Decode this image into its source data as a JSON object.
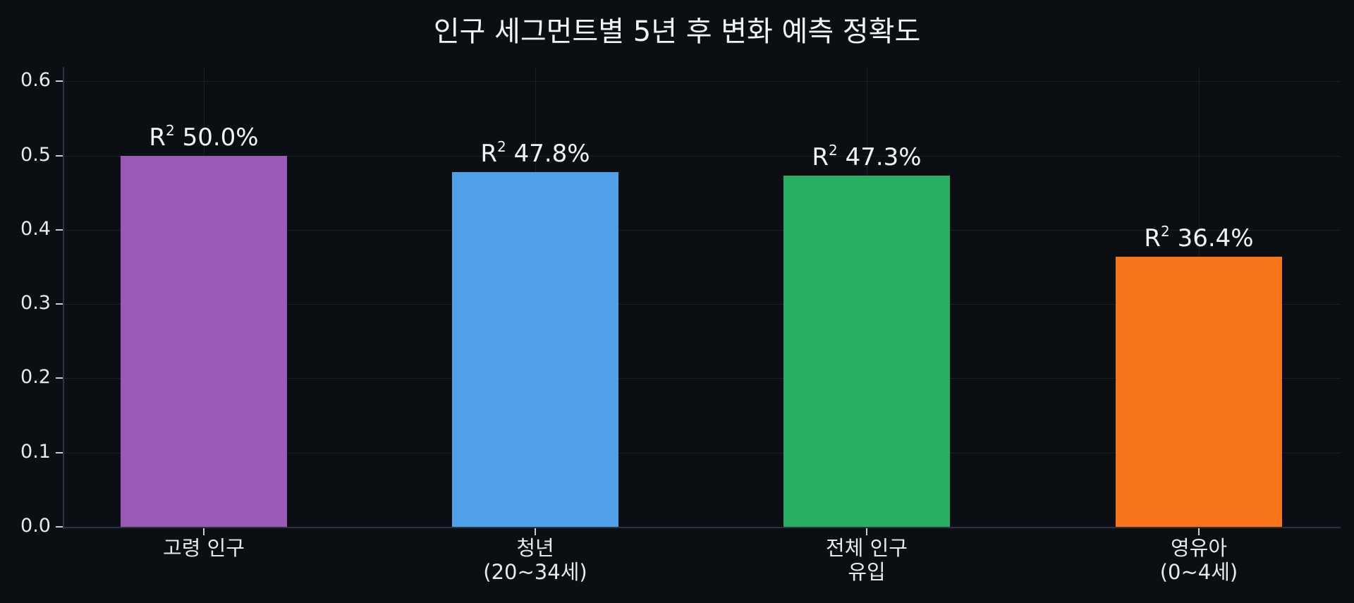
{
  "chart_data": {
    "type": "bar",
    "title": "인구 세그먼트별 5년 후 변화 예측 정확도",
    "xlabel": "",
    "ylabel": "",
    "ylim": [
      0,
      0.62
    ],
    "yticks": [
      "0.0",
      "0.1",
      "0.2",
      "0.3",
      "0.4",
      "0.5",
      "0.6"
    ],
    "grid": true,
    "categories": [
      "고령 인구",
      "청년\n(20~34세)",
      "전체 인구\n유입",
      "영유아\n(0~4세)"
    ],
    "values": [
      0.5,
      0.478,
      0.473,
      0.364
    ],
    "data_labels": [
      "50.0%",
      "47.8%",
      "47.3%",
      "36.4%"
    ],
    "data_label_prefix": "R",
    "data_label_superscript": "2",
    "colors": [
      "#9b59b6",
      "#4fa0e8",
      "#27ae60",
      "#f77519"
    ]
  },
  "title": "인구 세그먼트별 5년 후 변화 예측 정확도"
}
